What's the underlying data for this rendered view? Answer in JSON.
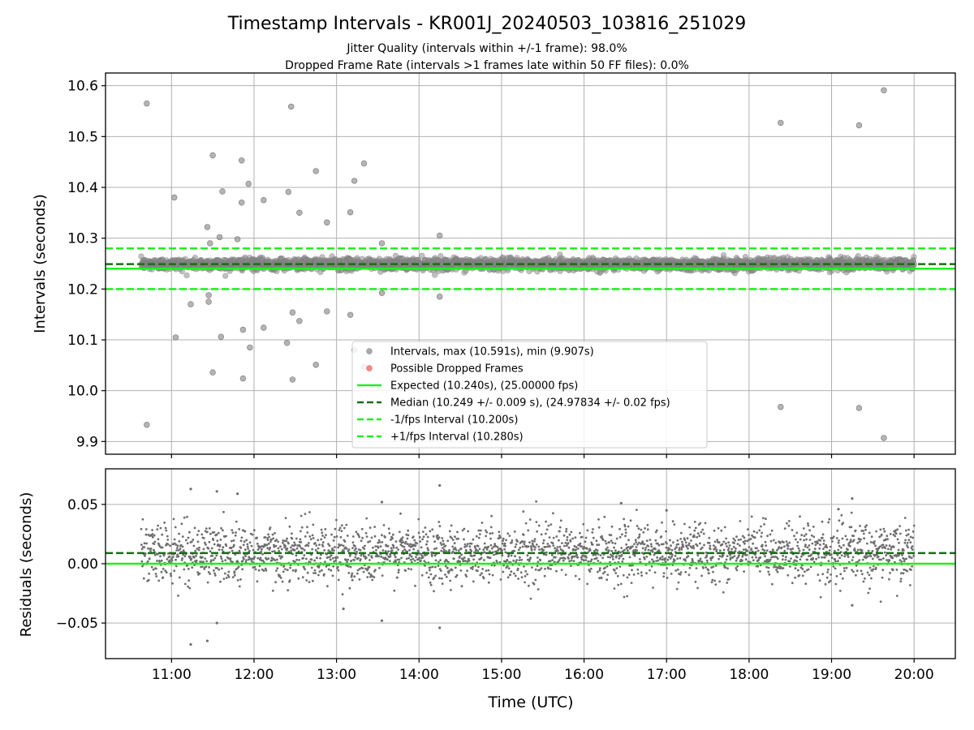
{
  "chart_data": [
    {
      "type": "scatter",
      "panel": "top",
      "title": "Timestamp Intervals - KR001J_20240503_103816_251029",
      "subtitle_line1": "Jitter Quality (intervals within +/-1 frame): 98.0%",
      "subtitle_line2": "Dropped Frame Rate (intervals >1 frames late within 50 FF files): 0.0%",
      "ylabel": "Intervals (seconds)",
      "xlabel": "",
      "xlim": [
        "10:12",
        "20:30"
      ],
      "ylim": [
        9.875,
        10.625
      ],
      "yticks": [
        9.9,
        10.0,
        10.1,
        10.2,
        10.3,
        10.4,
        10.5,
        10.6
      ],
      "ytick_labels": [
        "9.9",
        "10.0",
        "10.1",
        "10.2",
        "10.3",
        "10.4",
        "10.5",
        "10.6"
      ],
      "grid": true,
      "legend_position": "lower-center",
      "reference_lines": [
        {
          "name": "Expected (10.240s), (25.00000 fps)",
          "y": 10.24,
          "color": "#22ee22",
          "style": "solid"
        },
        {
          "name": "Median (10.249 +/- 0.009 s), (24.97834 +/- 0.02 fps)",
          "y": 10.249,
          "color": "#1a6b1a",
          "style": "dashed"
        },
        {
          "name": "-1/fps Interval (10.200s)",
          "y": 10.2,
          "color": "#22ee22",
          "style": "dashed"
        },
        {
          "name": "+1/fps Interval (10.280s)",
          "y": 10.28,
          "color": "#22ee22",
          "style": "dashed"
        }
      ],
      "legend": [
        {
          "label": "Intervals, max (10.591s), min (9.907s)",
          "kind": "marker",
          "color": "#8c8c8c"
        },
        {
          "label": "Possible Dropped Frames",
          "kind": "marker",
          "color": "#f06060"
        },
        {
          "label": "Expected (10.240s), (25.00000 fps)",
          "kind": "line",
          "color": "#22ee22",
          "style": "solid"
        },
        {
          "label": "Median (10.249 +/- 0.009 s), (24.97834 +/- 0.02 fps)",
          "kind": "line",
          "color": "#1a6b1a",
          "style": "dashed"
        },
        {
          "label": "-1/fps Interval (10.200s)",
          "kind": "line",
          "color": "#22ee22",
          "style": "dashed"
        },
        {
          "label": "+1/fps Interval (10.280s)",
          "kind": "line",
          "color": "#22ee22",
          "style": "dashed"
        }
      ],
      "series_dense": {
        "name": "Intervals, max (10.591s), min (9.907s)",
        "x_start": "10:38",
        "x_end": "20:00",
        "count": 3300,
        "center": 10.249,
        "spread_sd": 0.01,
        "color": "#8c8c8c"
      },
      "outliers": [
        {
          "x": "10:42",
          "y": 10.565
        },
        {
          "x": "10:42",
          "y": 9.933
        },
        {
          "x": "11:02",
          "y": 10.38
        },
        {
          "x": "11:03",
          "y": 10.105
        },
        {
          "x": "11:14",
          "y": 10.17
        },
        {
          "x": "11:28",
          "y": 10.29
        },
        {
          "x": "11:27",
          "y": 10.188
        },
        {
          "x": "11:30",
          "y": 10.463
        },
        {
          "x": "11:26",
          "y": 10.322
        },
        {
          "x": "11:27",
          "y": 10.175
        },
        {
          "x": "11:30",
          "y": 10.036
        },
        {
          "x": "11:35",
          "y": 10.302
        },
        {
          "x": "11:37",
          "y": 10.392
        },
        {
          "x": "11:36",
          "y": 10.106
        },
        {
          "x": "11:48",
          "y": 10.298
        },
        {
          "x": "11:51",
          "y": 10.453
        },
        {
          "x": "11:51",
          "y": 10.37
        },
        {
          "x": "11:52",
          "y": 10.12
        },
        {
          "x": "11:52",
          "y": 10.024
        },
        {
          "x": "11:56",
          "y": 10.407
        },
        {
          "x": "11:57",
          "y": 10.085
        },
        {
          "x": "12:07",
          "y": 10.375
        },
        {
          "x": "12:07",
          "y": 10.124
        },
        {
          "x": "12:25",
          "y": 10.391
        },
        {
          "x": "12:24",
          "y": 10.094
        },
        {
          "x": "12:27",
          "y": 10.559
        },
        {
          "x": "12:28",
          "y": 10.154
        },
        {
          "x": "12:28",
          "y": 10.022
        },
        {
          "x": "12:33",
          "y": 10.35
        },
        {
          "x": "12:33",
          "y": 10.137
        },
        {
          "x": "12:45",
          "y": 10.432
        },
        {
          "x": "12:45",
          "y": 10.051
        },
        {
          "x": "12:53",
          "y": 10.331
        },
        {
          "x": "12:53",
          "y": 10.156
        },
        {
          "x": "13:10",
          "y": 10.351
        },
        {
          "x": "13:10",
          "y": 10.149
        },
        {
          "x": "13:13",
          "y": 10.413
        },
        {
          "x": "13:13",
          "y": 10.08
        },
        {
          "x": "13:20",
          "y": 10.447
        },
        {
          "x": "13:20",
          "y": 10.047
        },
        {
          "x": "13:33",
          "y": 10.29
        },
        {
          "x": "13:33",
          "y": 10.192
        },
        {
          "x": "14:15",
          "y": 10.305
        },
        {
          "x": "14:15",
          "y": 10.185
        },
        {
          "x": "18:23",
          "y": 10.527
        },
        {
          "x": "18:23",
          "y": 9.968
        },
        {
          "x": "19:20",
          "y": 10.522
        },
        {
          "x": "19:20",
          "y": 9.966
        },
        {
          "x": "19:38",
          "y": 10.591
        },
        {
          "x": "19:38",
          "y": 9.907
        }
      ]
    },
    {
      "type": "scatter",
      "panel": "bottom",
      "xlabel": "Time (UTC)",
      "ylabel": "Residuals (seconds)",
      "xlim": [
        "10:12",
        "20:30"
      ],
      "ylim": [
        -0.08,
        0.08
      ],
      "xticks": [
        "11:00",
        "12:00",
        "13:00",
        "14:00",
        "15:00",
        "16:00",
        "17:00",
        "18:00",
        "19:00",
        "20:00"
      ],
      "yticks": [
        -0.05,
        0.0,
        0.05
      ],
      "ytick_labels": [
        "−0.05",
        "0.00",
        "0.05"
      ],
      "grid": true,
      "reference_lines": [
        {
          "name": "Expected",
          "y": 0.0,
          "color": "#22ee22",
          "style": "solid"
        },
        {
          "name": "Median",
          "y": 0.009,
          "color": "#1a6b1a",
          "style": "dashed"
        }
      ],
      "series_dense": {
        "name": "Residuals",
        "x_start": "10:38",
        "x_end": "20:00",
        "count": 2600,
        "center": 0.009,
        "spread_sd": 0.012,
        "color": "#6e6e6e"
      },
      "outliers": [
        {
          "x": "11:14",
          "y": 0.063
        },
        {
          "x": "11:14",
          "y": -0.068
        },
        {
          "x": "11:26",
          "y": -0.065
        },
        {
          "x": "11:33",
          "y": 0.061
        },
        {
          "x": "11:33",
          "y": -0.05
        },
        {
          "x": "11:48",
          "y": 0.059
        },
        {
          "x": "13:05",
          "y": -0.038
        },
        {
          "x": "13:33",
          "y": 0.052
        },
        {
          "x": "13:33",
          "y": -0.048
        },
        {
          "x": "14:15",
          "y": 0.066
        },
        {
          "x": "14:15",
          "y": -0.054
        },
        {
          "x": "16:27",
          "y": 0.051
        },
        {
          "x": "17:00",
          "y": 0.045
        },
        {
          "x": "19:05",
          "y": 0.046
        },
        {
          "x": "19:15",
          "y": 0.055
        },
        {
          "x": "19:15",
          "y": -0.035
        }
      ]
    }
  ]
}
